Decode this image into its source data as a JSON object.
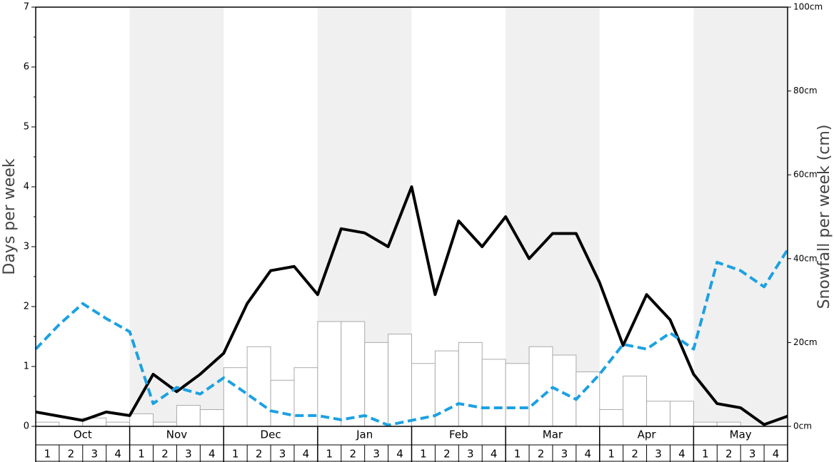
{
  "chart_data": {
    "type": "combo",
    "ylabel": "Days per week",
    "y2label": "Snowfall per week (cm)",
    "months": [
      "Oct",
      "Nov",
      "Dec",
      "Jan",
      "Feb",
      "Mar",
      "Apr",
      "May"
    ],
    "weeks": [
      1,
      2,
      3,
      4
    ],
    "shade_color": "#f0f0f0",
    "ylim": [
      0,
      7
    ],
    "yticks": [
      0,
      1,
      2,
      3,
      4,
      5,
      6,
      7
    ],
    "y2lim": [
      0,
      100
    ],
    "y2ticks": [
      {
        "value": 0,
        "label": "0cm"
      },
      {
        "value": 20,
        "label": "20cm"
      },
      {
        "value": 40,
        "label": "40cm"
      },
      {
        "value": 60,
        "label": "60cm"
      },
      {
        "value": 80,
        "label": "80cm"
      },
      {
        "value": 100,
        "label": "100cm"
      }
    ],
    "bars": {
      "axis": "y2",
      "color": "#ffffff",
      "edge": "#aaaaaa",
      "values": [
        1,
        0,
        2,
        1,
        3,
        1,
        5,
        4,
        14,
        19,
        11,
        14,
        25,
        25,
        20,
        22,
        15,
        18,
        20,
        16,
        15,
        19,
        17,
        13,
        4,
        12,
        6,
        6,
        1,
        1,
        0,
        0
      ]
    },
    "lines": [
      {
        "color": "#000000",
        "dashed": false,
        "values": [
          0.24,
          0.17,
          0.1,
          0.24,
          0.18,
          0.87,
          0.58,
          0.87,
          1.22,
          2.05,
          2.6,
          2.67,
          2.2,
          3.3,
          3.23,
          3.0,
          4.0,
          2.2,
          3.43,
          3.0,
          3.5,
          2.8,
          3.22,
          3.22,
          2.4,
          1.35,
          2.2,
          1.78,
          0.87,
          0.38,
          0.31,
          0.03,
          0.17
        ]
      },
      {
        "color": "#1ba1e2",
        "dashed": true,
        "values": [
          1.29,
          1.7,
          2.05,
          1.8,
          1.58,
          0.38,
          0.65,
          0.54,
          0.81,
          0.54,
          0.26,
          0.18,
          0.18,
          0.11,
          0.18,
          0.02,
          0.1,
          0.18,
          0.38,
          0.31,
          0.31,
          0.31,
          0.65,
          0.45,
          0.87,
          1.37,
          1.29,
          1.56,
          1.29,
          2.74,
          2.6,
          2.33,
          2.95
        ]
      }
    ]
  }
}
